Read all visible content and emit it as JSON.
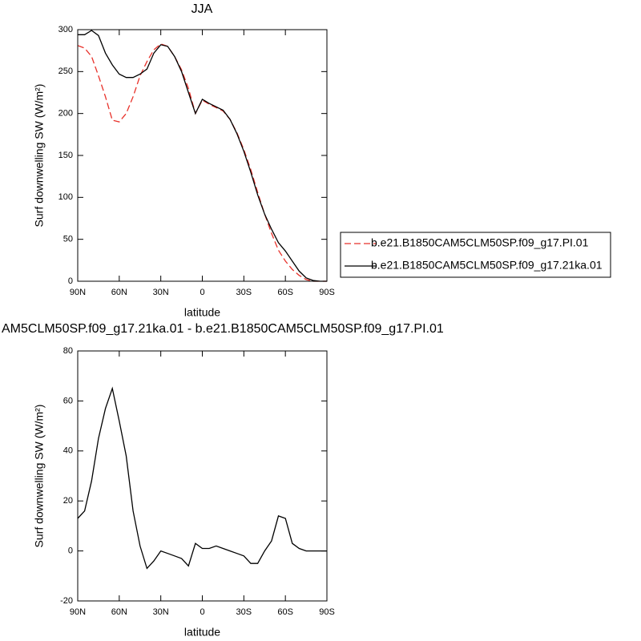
{
  "chart_data": [
    {
      "type": "line",
      "title": "JJA",
      "xlabel": "latitude",
      "ylabel": "Surf downwelling SW (W/m²)",
      "x": [
        90,
        85,
        80,
        75,
        70,
        65,
        60,
        55,
        50,
        45,
        40,
        35,
        30,
        25,
        20,
        15,
        10,
        5,
        0,
        -5,
        -10,
        -15,
        -20,
        -25,
        -30,
        -35,
        -40,
        -45,
        -50,
        -55,
        -60,
        -65,
        -70,
        -75,
        -80,
        -85,
        -90
      ],
      "series": [
        {
          "name": "b.e21.B1850CAM5CLM50SP.f09_g17.PI.01",
          "color": "#e8312a",
          "dashed": true,
          "values": [
            281,
            278,
            268,
            245,
            220,
            192,
            190,
            200,
            220,
            245,
            262,
            276,
            283,
            280,
            268,
            252,
            230,
            200,
            216,
            211,
            207,
            203,
            193,
            177,
            157,
            133,
            106,
            80,
            57,
            37,
            24,
            14,
            7,
            2,
            0,
            0,
            0
          ]
        },
        {
          "name": "b.e21.B1850CAM5CLM50SP.f09_g17.21ka.01",
          "color": "#000000",
          "dashed": false,
          "values": [
            294,
            294,
            299,
            293,
            272,
            258,
            247,
            243,
            243,
            247,
            253,
            272,
            282,
            280,
            268,
            250,
            225,
            200,
            217,
            212,
            208,
            204,
            193,
            176,
            155,
            130,
            103,
            80,
            62,
            46,
            36,
            24,
            12,
            4,
            1,
            0,
            0
          ]
        }
      ],
      "xlim": [
        90,
        -90
      ],
      "xticks": [
        {
          "value": 90,
          "label": "90N"
        },
        {
          "value": 60,
          "label": "60N"
        },
        {
          "value": 30,
          "label": "30N"
        },
        0,
        {
          "value": -30,
          "label": "30S"
        },
        {
          "value": -60,
          "label": "60S"
        },
        {
          "value": -90,
          "label": "90S"
        }
      ],
      "ylim": [
        0,
        300
      ],
      "yticks": [
        0,
        50,
        100,
        150,
        200,
        250,
        300
      ],
      "legend": "outside-right"
    },
    {
      "type": "line",
      "title": "AM5CLM50SP.f09_g17.21ka.01 - b.e21.B1850CAM5CLM50SP.f09_g17.PI.01",
      "xlabel": "latitude",
      "ylabel": "Surf downwelling SW (W/m²)",
      "x": [
        90,
        85,
        80,
        75,
        70,
        65,
        60,
        55,
        50,
        45,
        40,
        35,
        30,
        25,
        20,
        15,
        10,
        5,
        0,
        -5,
        -10,
        -15,
        -20,
        -25,
        -30,
        -35,
        -40,
        -45,
        -50,
        -55,
        -60,
        -65,
        -70,
        -75,
        -80,
        -85,
        -90
      ],
      "series": [
        {
          "color": "#000000",
          "dashed": false,
          "values": [
            13,
            16,
            28,
            45,
            57,
            65,
            52,
            38,
            16,
            2,
            -7,
            -4,
            0,
            -1,
            -2,
            -3,
            -6,
            3,
            1,
            1,
            2,
            1,
            0,
            -1,
            -2,
            -5,
            -5,
            0,
            4,
            14,
            13,
            3,
            1,
            0,
            0,
            0,
            0
          ]
        }
      ],
      "xlim": [
        90,
        -90
      ],
      "xticks": [
        {
          "value": 90,
          "label": "90N"
        },
        {
          "value": 60,
          "label": "60N"
        },
        {
          "value": 30,
          "label": "30N"
        },
        0,
        {
          "value": -30,
          "label": "30S"
        },
        {
          "value": -60,
          "label": "60S"
        },
        {
          "value": -90,
          "label": "90S"
        }
      ],
      "ylim": [
        -20,
        80
      ],
      "yticks": [
        -20,
        0,
        20,
        40,
        60,
        80
      ]
    }
  ]
}
